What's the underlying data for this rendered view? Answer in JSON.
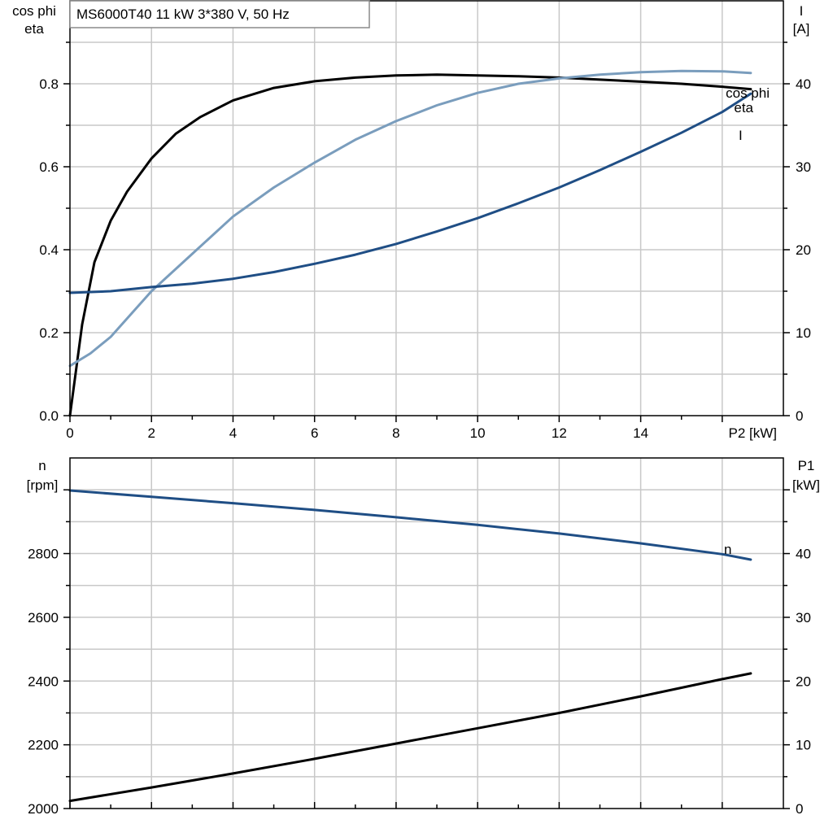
{
  "chart_data": [
    {
      "type": "line",
      "title": "MS6000T40   11 kW   3*380 V, 50 Hz",
      "xlabel": "P2 [kW]",
      "ylabel_left": [
        "cos phi",
        "eta"
      ],
      "ylabel_right": [
        "I",
        "[A]"
      ],
      "xlim": [
        0,
        17.5
      ],
      "ylim_left": [
        0,
        1.0
      ],
      "ylim_right": [
        0,
        50
      ],
      "xticks": [
        "0",
        "2",
        "4",
        "6",
        "8",
        "10",
        "12",
        "14"
      ],
      "yticks_left": [
        "0.0",
        "0.2",
        "0.4",
        "0.6",
        "0.8"
      ],
      "yticks_right": [
        "0",
        "10",
        "20",
        "30",
        "40"
      ],
      "grid": true,
      "series": [
        {
          "name": "eta",
          "axis": "left",
          "color": "#000000",
          "x": [
            0,
            0.3,
            0.6,
            1.0,
            1.4,
            2.0,
            2.6,
            3.2,
            4.0,
            5.0,
            6.0,
            7.0,
            8.0,
            9.0,
            10.0,
            11.0,
            12.0,
            13.0,
            14.0,
            15.0,
            16.0,
            16.7
          ],
          "y": [
            0.0,
            0.22,
            0.37,
            0.47,
            0.54,
            0.62,
            0.68,
            0.72,
            0.76,
            0.79,
            0.806,
            0.815,
            0.82,
            0.822,
            0.82,
            0.818,
            0.815,
            0.81,
            0.805,
            0.8,
            0.793,
            0.787
          ]
        },
        {
          "name": "cos phi",
          "axis": "left",
          "color": "#7a9dbd",
          "x": [
            0,
            0.5,
            1.0,
            2.0,
            3.0,
            4.0,
            5.0,
            6.0,
            7.0,
            8.0,
            9.0,
            10.0,
            11.0,
            12.0,
            13.0,
            14.0,
            15.0,
            16.0,
            16.7
          ],
          "y": [
            0.12,
            0.15,
            0.19,
            0.3,
            0.39,
            0.48,
            0.55,
            0.61,
            0.665,
            0.71,
            0.748,
            0.778,
            0.8,
            0.813,
            0.822,
            0.828,
            0.831,
            0.83,
            0.826
          ]
        },
        {
          "name": "I",
          "axis": "right",
          "color": "#1f4e85",
          "x": [
            0,
            1.0,
            2.0,
            3.0,
            4.0,
            5.0,
            6.0,
            7.0,
            8.0,
            9.0,
            10.0,
            11.0,
            12.0,
            13.0,
            14.0,
            15.0,
            16.0,
            16.7
          ],
          "y": [
            14.8,
            15.0,
            15.5,
            15.9,
            16.5,
            17.3,
            18.3,
            19.4,
            20.7,
            22.2,
            23.8,
            25.6,
            27.5,
            29.6,
            31.8,
            34.1,
            36.6,
            38.8
          ]
        }
      ]
    },
    {
      "type": "line",
      "xlabel": "",
      "ylabel_left": [
        "n",
        "[rpm]"
      ],
      "ylabel_right": [
        "P1",
        "[kW]"
      ],
      "xlim": [
        0,
        17.5
      ],
      "ylim_left": [
        2000,
        3100
      ],
      "ylim_right": [
        0,
        55
      ],
      "yticks_left": [
        "2000",
        "2200",
        "2400",
        "2600",
        "2800"
      ],
      "yticks_right": [
        "0",
        "10",
        "20",
        "30",
        "40"
      ],
      "grid": true,
      "series": [
        {
          "name": "n",
          "axis": "left",
          "color": "#1f4e85",
          "x": [
            0,
            2,
            4,
            6,
            8,
            10,
            12,
            14,
            16,
            16.7
          ],
          "y": [
            2998,
            2978,
            2958,
            2937,
            2914,
            2890,
            2863,
            2832,
            2798,
            2781
          ]
        },
        {
          "name": "",
          "axis": "right",
          "color": "#000000",
          "x": [
            0,
            2,
            4,
            6,
            8,
            10,
            12,
            14,
            16,
            16.7
          ],
          "y": [
            1.2,
            3.3,
            5.5,
            7.8,
            10.2,
            12.6,
            15.0,
            17.6,
            20.3,
            21.2
          ]
        }
      ]
    }
  ]
}
